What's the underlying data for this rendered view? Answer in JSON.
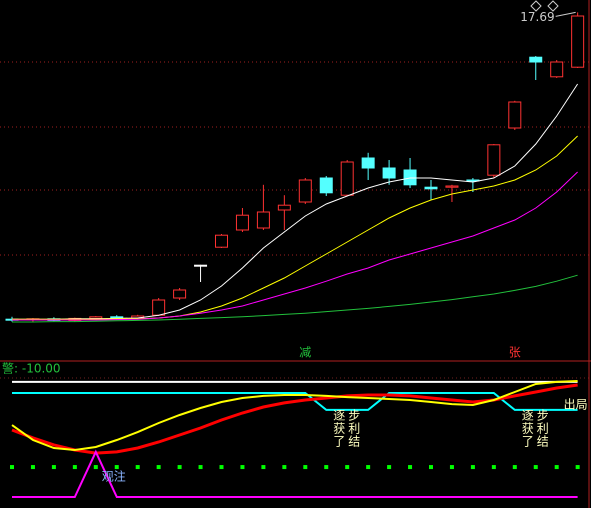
{
  "chart_data": [
    {
      "type": "candlestick",
      "open": [
        10.02,
        10.0,
        10.03,
        9.99,
        10.04,
        10.08,
        10.05,
        10.12,
        10.55,
        11.37,
        11.82,
        12.25,
        12.3,
        12.75,
        12.95,
        13.55,
        13.12,
        14.05,
        13.8,
        13.75,
        13.32,
        13.32,
        13.5,
        13.62,
        14.8,
        16.57,
        16.08,
        16.32
      ],
      "high": [
        10.08,
        10.05,
        10.07,
        10.06,
        10.1,
        10.12,
        10.13,
        10.55,
        10.8,
        11.38,
        12.15,
        12.8,
        13.38,
        13.12,
        13.55,
        13.6,
        14.0,
        14.18,
        14.0,
        14.05,
        13.5,
        13.38,
        13.55,
        14.4,
        15.48,
        16.6,
        16.5,
        17.69
      ],
      "low": [
        9.96,
        9.95,
        9.97,
        9.95,
        10.0,
        10.02,
        10.01,
        10.1,
        10.5,
        10.95,
        11.8,
        12.2,
        12.25,
        12.25,
        12.9,
        13.1,
        13.1,
        13.5,
        13.38,
        13.3,
        13.0,
        12.95,
        13.2,
        13.55,
        14.75,
        16.0,
        16.05,
        16.3
      ],
      "close": [
        10.0,
        10.03,
        9.99,
        10.04,
        10.08,
        10.05,
        10.1,
        10.5,
        10.75,
        11.37,
        12.12,
        12.62,
        12.7,
        12.87,
        13.5,
        13.18,
        13.95,
        13.8,
        13.55,
        13.38,
        13.28,
        13.35,
        13.48,
        14.38,
        15.45,
        16.45,
        16.45,
        17.6
      ],
      "up_color": "#ff3232",
      "down_color": "#54ffff",
      "flat_color": "#ffffff",
      "ylim": [
        9,
        18
      ],
      "series": [
        {
          "color": "#ffffff",
          "values": [
            10.02,
            10.02,
            10.02,
            10.03,
            10.03,
            10.04,
            10.05,
            10.12,
            10.25,
            10.5,
            10.85,
            11.3,
            11.8,
            12.2,
            12.6,
            12.9,
            13.1,
            13.3,
            13.45,
            13.55,
            13.55,
            13.5,
            13.45,
            13.55,
            13.85,
            14.4,
            15.1,
            15.9
          ]
        },
        {
          "color": "#ffff00",
          "values": [
            10.02,
            10.02,
            10.02,
            10.02,
            10.02,
            10.03,
            10.03,
            10.05,
            10.1,
            10.2,
            10.35,
            10.55,
            10.8,
            11.05,
            11.35,
            11.65,
            11.95,
            12.25,
            12.55,
            12.8,
            13.0,
            13.15,
            13.25,
            13.35,
            13.5,
            13.75,
            14.1,
            14.6
          ]
        },
        {
          "color": "#ff00ff",
          "values": [
            10.0,
            10.0,
            10.0,
            10.0,
            10.0,
            10.01,
            10.02,
            10.05,
            10.1,
            10.17,
            10.25,
            10.35,
            10.5,
            10.65,
            10.8,
            10.97,
            11.15,
            11.3,
            11.5,
            11.65,
            11.8,
            11.95,
            12.1,
            12.3,
            12.5,
            12.8,
            13.2,
            13.7
          ]
        },
        {
          "color": "#22c03c",
          "values": [
            9.95,
            9.95,
            9.96,
            9.96,
            9.97,
            9.98,
            9.99,
            10.0,
            10.02,
            10.04,
            10.06,
            10.08,
            10.11,
            10.14,
            10.17,
            10.21,
            10.25,
            10.29,
            10.34,
            10.39,
            10.45,
            10.51,
            10.58,
            10.65,
            10.74,
            10.84,
            10.97,
            11.12
          ]
        }
      ],
      "annotations": [
        {
          "text": "减",
          "index": 14,
          "color": "#22c03c"
        },
        {
          "text": "张",
          "index": 24,
          "color": "#ff3232"
        }
      ]
    },
    {
      "type": "line",
      "title": "警: -10.00",
      "ylim": [
        0,
        100
      ],
      "series": [
        {
          "color": "#ffffff",
          "width": 2,
          "values": [
            87.9,
            87.9,
            87.9,
            87.9,
            87.9,
            87.9,
            87.9,
            87.9,
            87.9,
            87.9,
            87.9,
            87.9,
            87.9,
            87.9,
            87.9,
            87.9,
            87.9,
            87.9,
            87.9,
            87.9,
            87.9,
            87.9,
            87.9,
            87.9,
            87.9,
            87.9,
            87.9,
            87.9
          ]
        },
        {
          "color": "#00ffff",
          "width": 2,
          "values": [
            80,
            80,
            80,
            80,
            80,
            80,
            80,
            80,
            80,
            80,
            80,
            80,
            80,
            80,
            80,
            67.9,
            67.9,
            67.9,
            80,
            80,
            80,
            80,
            80,
            80,
            67.9,
            67.9,
            67.9,
            67.9
          ]
        },
        {
          "color": "#ff0000",
          "width": 3,
          "values": [
            53.6,
            47.9,
            42.9,
            39.3,
            37.1,
            37.9,
            40.7,
            45,
            50,
            55,
            60.7,
            65.7,
            70,
            72.9,
            75,
            76.4,
            77.9,
            78.6,
            78.6,
            77.9,
            76.4,
            75,
            73.6,
            75,
            77.9,
            80.7,
            83.6,
            85.7
          ]
        },
        {
          "color": "#ffff00",
          "width": 2,
          "values": [
            57.1,
            46.4,
            40.7,
            39.3,
            41.4,
            46.4,
            52.1,
            58.6,
            64.3,
            69.3,
            73.6,
            76.4,
            77.9,
            78.6,
            78.6,
            77.9,
            77.1,
            76.4,
            75.7,
            75,
            73.6,
            72.1,
            71.4,
            75,
            80.7,
            86.4,
            87.9,
            88.6
          ]
        },
        {
          "color": "#ff00ff",
          "width": 2,
          "values": [
            5.7,
            5.7,
            5.7,
            5.7,
            37.9,
            5.7,
            5.7,
            5.7,
            5.7,
            5.7,
            5.7,
            5.7,
            5.7,
            5.7,
            5.7,
            5.7,
            5.7,
            5.7,
            5.7,
            5.7,
            5.7,
            5.7,
            5.7,
            5.7,
            5.7,
            5.7,
            5.7,
            5.7
          ]
        },
        {
          "color": "#00ff00",
          "style": "dots",
          "values": [
            27.1,
            27.1,
            27.1,
            27.1,
            27.1,
            27.1,
            27.1,
            27.1,
            27.1,
            27.1,
            27.1,
            27.1,
            27.1,
            27.1,
            27.1,
            27.1,
            27.1,
            27.1,
            27.1,
            27.1,
            27.1,
            27.1,
            27.1,
            27.1,
            27.1,
            27.1,
            27.1,
            27.1
          ]
        }
      ],
      "annotations": [
        {
          "lines": [
            "观注"
          ],
          "index": 4,
          "color": "#8ab4ff"
        },
        {
          "lines": [
            "逐步",
            "获利",
            "了结"
          ],
          "index": 16,
          "color": "#ffffc0"
        },
        {
          "lines": [
            "逐步",
            "获利",
            "了结"
          ],
          "index": 25,
          "color": "#ffffc0"
        },
        {
          "lines": [
            "出局"
          ],
          "index": 27,
          "color": "#ffffc0"
        }
      ]
    }
  ]
}
